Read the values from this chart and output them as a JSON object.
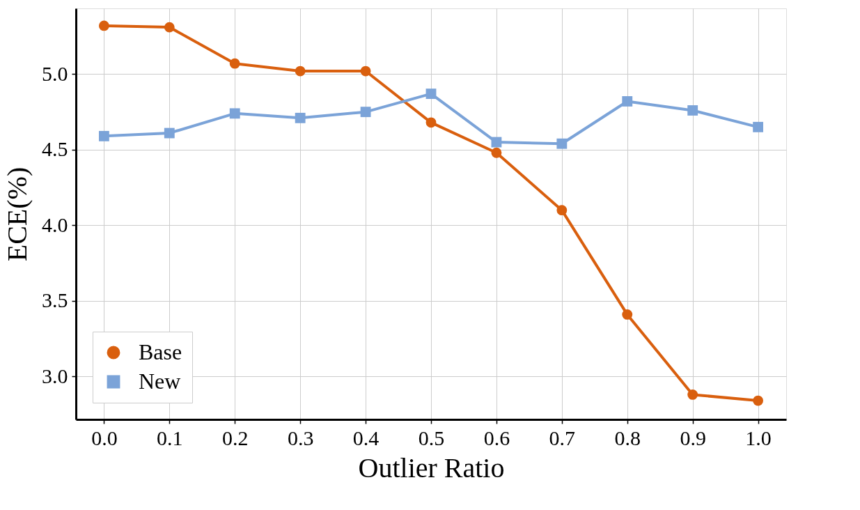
{
  "chart_data": {
    "type": "line",
    "xlabel": "Outlier Ratio",
    "ylabel": "ECE(%)",
    "x": [
      0.0,
      0.1,
      0.2,
      0.3,
      0.4,
      0.5,
      0.6,
      0.7,
      0.8,
      0.9,
      1.0
    ],
    "series": [
      {
        "name": "Base",
        "color": "#d95f0e",
        "marker": "circle",
        "values": [
          5.32,
          5.31,
          5.07,
          5.02,
          5.02,
          4.68,
          4.48,
          4.1,
          3.41,
          2.88,
          2.84
        ]
      },
      {
        "name": "New",
        "color": "#7ba3d8",
        "marker": "square",
        "values": [
          4.59,
          4.61,
          4.74,
          4.71,
          4.75,
          4.87,
          4.55,
          4.54,
          4.82,
          4.76,
          4.65
        ]
      }
    ],
    "xlim": [
      -0.043,
      1.043
    ],
    "ylim": [
      2.716,
      5.435
    ],
    "xticks": [
      {
        "value": 0,
        "label": "0.0"
      },
      {
        "value": 0.1,
        "label": "0.1"
      },
      {
        "value": 0.2,
        "label": "0.2"
      },
      {
        "value": 0.3,
        "label": "0.3"
      },
      {
        "value": 0.4,
        "label": "0.4"
      },
      {
        "value": 0.5,
        "label": "0.5"
      },
      {
        "value": 0.6,
        "label": "0.6"
      },
      {
        "value": 0.7,
        "label": "0.7"
      },
      {
        "value": 0.8,
        "label": "0.8"
      },
      {
        "value": 0.9,
        "label": "0.9"
      },
      {
        "value": 1,
        "label": "1.0"
      }
    ],
    "yticks": [
      {
        "value": 3,
        "label": "3.0"
      },
      {
        "value": 3.5,
        "label": "3.5"
      },
      {
        "value": 4,
        "label": "4.0"
      },
      {
        "value": 4.5,
        "label": "4.5"
      },
      {
        "value": 5,
        "label": "5.0"
      }
    ],
    "grid": true,
    "legend": "bottom left",
    "line_style": "solid"
  }
}
